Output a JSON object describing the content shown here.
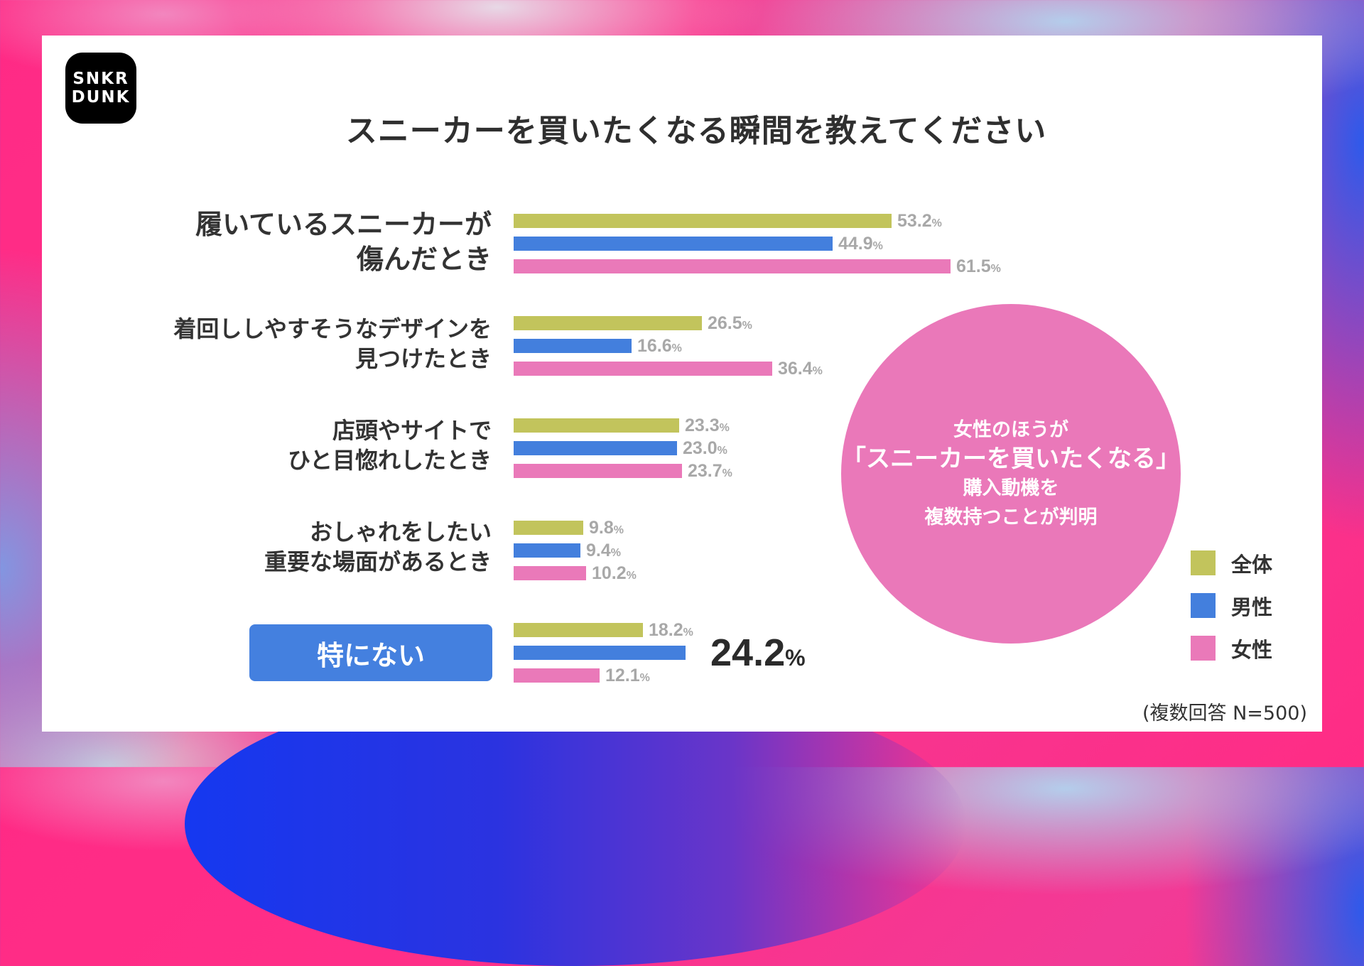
{
  "logo": {
    "line1": "SNKR",
    "line2": "DUNK"
  },
  "title": "スニーカーを買いたくなる瞬間を教えてください",
  "colors": {
    "overall": "#c2c45c",
    "male": "#437fdd",
    "female": "#ea79b9",
    "value_text": "#a8a8a8",
    "highlight_button": "#4480df",
    "callout_circle": "#ea78b9"
  },
  "categories": [
    {
      "label_lines": [
        "履いているスニーカーが",
        "傷んだとき"
      ],
      "values": {
        "overall": 53.2,
        "male": 44.9,
        "female": 61.5
      },
      "display": {
        "overall": "53.2",
        "male": "44.9",
        "female": "61.5"
      }
    },
    {
      "label_lines": [
        "着回ししやすそうなデザインを",
        "見つけたとき"
      ],
      "values": {
        "overall": 26.5,
        "male": 16.6,
        "female": 36.4
      },
      "display": {
        "overall": "26.5",
        "male": "16.6",
        "female": "36.4"
      }
    },
    {
      "label_lines": [
        "店頭やサイトで",
        "ひと目惚れしたとき"
      ],
      "values": {
        "overall": 23.3,
        "male": 23.0,
        "female": 23.7
      },
      "display": {
        "overall": "23.3",
        "male": "23.0",
        "female": "23.7"
      }
    },
    {
      "label_lines": [
        "おしゃれをしたい",
        "重要な場面があるとき"
      ],
      "values": {
        "overall": 9.8,
        "male": 9.4,
        "female": 10.2
      },
      "display": {
        "overall": "9.8",
        "male": "9.4",
        "female": "10.2"
      }
    },
    {
      "label_lines": [
        "特にない"
      ],
      "values": {
        "overall": 18.2,
        "male": 24.2,
        "female": 12.1
      },
      "display": {
        "overall": "18.2",
        "male": "24.2",
        "female": "12.1"
      }
    }
  ],
  "percent_sign": "%",
  "callout": {
    "line1": "女性のほうが",
    "line2": "「スニーカーを買いたくなる」",
    "line3": "購入動機を",
    "line4": "複数持つことが判明"
  },
  "legend": [
    {
      "label": "全体",
      "key": "overall"
    },
    {
      "label": "男性",
      "key": "male"
    },
    {
      "label": "女性",
      "key": "female"
    }
  ],
  "footnote": "(複数回答 N=500)",
  "chart_data": {
    "type": "bar",
    "orientation": "horizontal",
    "title": "スニーカーを買いたくなる瞬間を教えてください",
    "categories": [
      "履いているスニーカーが傷んだとき",
      "着回ししやすそうなデザインを見つけたとき",
      "店頭やサイトでひと目惚れしたとき",
      "おしゃれをしたい重要な場面があるとき",
      "特にない"
    ],
    "series": [
      {
        "name": "全体",
        "color": "#c2c45c",
        "values": [
          53.2,
          26.5,
          23.3,
          9.8,
          18.2
        ]
      },
      {
        "name": "男性",
        "color": "#437fdd",
        "values": [
          44.9,
          16.6,
          23.0,
          9.4,
          24.2
        ]
      },
      {
        "name": "女性",
        "color": "#ea79b9",
        "values": [
          61.5,
          36.4,
          23.7,
          10.2,
          12.1
        ]
      }
    ],
    "unit": "%",
    "xlabel": "",
    "ylabel": "",
    "grid": false,
    "legend_position": "bottom-right",
    "annotations": [
      "女性のほうが「スニーカーを買いたくなる」購入動機を複数持つことが判明",
      "特にない 男性 24.2% (emphasized)"
    ],
    "note": "(複数回答 N=500)"
  }
}
